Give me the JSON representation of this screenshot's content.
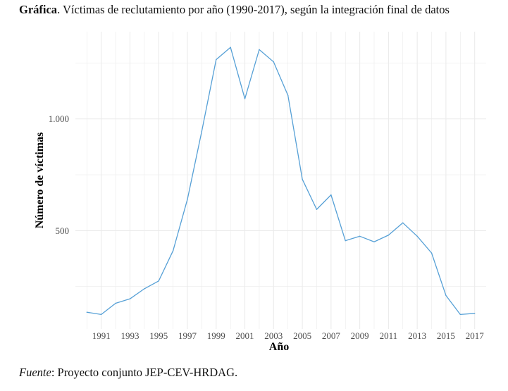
{
  "caption": {
    "lead": "Gráfica",
    "text": ". Víctimas de reclutamiento por año (1990-2017), según la integración final de datos"
  },
  "source": {
    "lead": "Fuente",
    "text": ": Proyecto conjunto JEP-CEV-HRDAG."
  },
  "colors": {
    "line": "#56a0d6",
    "grid": "#ebebeb",
    "text": "#111111",
    "tick_label": "#4d4d4d"
  },
  "chart_data": {
    "type": "line",
    "title": "",
    "xlabel": "Año",
    "ylabel": "Número de víctimas",
    "xlim": [
      1989.2,
      2017.8
    ],
    "ylim": [
      60,
      1390
    ],
    "xticks": [
      1991,
      1993,
      1995,
      1997,
      1999,
      2001,
      2003,
      2005,
      2007,
      2009,
      2011,
      2013,
      2015,
      2017
    ],
    "xtick_labels": [
      "1991",
      "1993",
      "1995",
      "1997",
      "1999",
      "2001",
      "2003",
      "2005",
      "2007",
      "2009",
      "2011",
      "2013",
      "2015",
      "2017"
    ],
    "yticks": [
      500,
      1000
    ],
    "ytick_labels": [
      "500",
      "1.000"
    ],
    "grid": true,
    "legend": "none",
    "x": [
      1990,
      1991,
      1992,
      1993,
      1994,
      1995,
      1996,
      1997,
      1998,
      1999,
      2000,
      2001,
      2002,
      2003,
      2004,
      2005,
      2006,
      2007,
      2008,
      2009,
      2010,
      2011,
      2012,
      2013,
      2014,
      2015,
      2016,
      2017
    ],
    "series": [
      {
        "values": [
          135,
          125,
          175,
          195,
          240,
          275,
          410,
          640,
          945,
          1265,
          1320,
          1090,
          1310,
          1255,
          1105,
          730,
          595,
          660,
          455,
          475,
          450,
          480,
          535,
          475,
          400,
          210,
          125,
          130
        ]
      }
    ]
  }
}
